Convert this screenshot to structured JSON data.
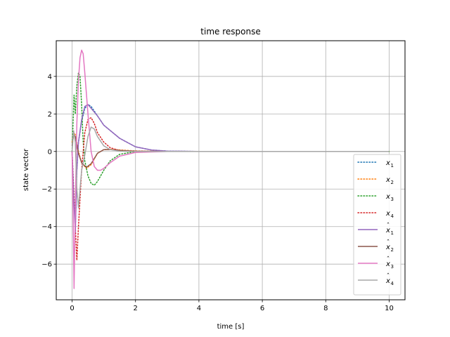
{
  "chart_data": {
    "type": "line",
    "title": "time response",
    "xlabel": "time [s]",
    "ylabel": "state vector",
    "xlim": [
      -0.5,
      10.5
    ],
    "ylim": [
      -7.9,
      5.9
    ],
    "xticks": [
      0,
      2,
      4,
      6,
      8,
      10
    ],
    "xtick_labels": [
      "0",
      "2",
      "4",
      "6",
      "8",
      "10"
    ],
    "yticks": [
      -6,
      -4,
      -2,
      0,
      2,
      4
    ],
    "ytick_labels": [
      "−6",
      "−4",
      "−2",
      "0",
      "2",
      "4"
    ],
    "grid": true,
    "legend_position": "bottom-right",
    "series": [
      {
        "name": "x1",
        "base": "x",
        "sub": "1",
        "hat": false,
        "style": "dotted",
        "color": "#1f77b4",
        "x": [
          0,
          0.05,
          0.1,
          0.15,
          0.2,
          0.3,
          0.4,
          0.5,
          0.6,
          0.8,
          1.0,
          1.5,
          2,
          2.5,
          3,
          4,
          6,
          10
        ],
        "y": [
          0,
          -2.0,
          -4.2,
          -1.0,
          0.5,
          1.6,
          2.3,
          2.5,
          2.4,
          1.9,
          1.4,
          0.7,
          0.25,
          0.08,
          0.02,
          0,
          0,
          0
        ]
      },
      {
        "name": "x2",
        "base": "x",
        "sub": "2",
        "hat": false,
        "style": "dotted",
        "color": "#ff7f0e",
        "x": [
          0,
          0.05,
          0.1,
          0.2,
          0.3,
          0.45,
          0.6,
          0.8,
          1.0,
          1.2,
          1.5,
          2.0,
          3.0,
          10
        ],
        "y": [
          0.5,
          1.0,
          0.9,
          0.0,
          -0.6,
          -0.9,
          -0.7,
          -0.1,
          0.1,
          0.12,
          0.08,
          0.03,
          0,
          0
        ]
      },
      {
        "name": "x3",
        "base": "x",
        "sub": "3",
        "hat": false,
        "style": "dotted",
        "color": "#2ca02c",
        "x": [
          0,
          0.03,
          0.06,
          0.1,
          0.15,
          0.2,
          0.25,
          0.3,
          0.35,
          0.4,
          0.5,
          0.6,
          0.7,
          0.8,
          1.0,
          1.2,
          1.5,
          2.0,
          3.0,
          10
        ],
        "y": [
          0,
          1.5,
          3.0,
          2.0,
          3.5,
          4.2,
          4.0,
          2.5,
          0.5,
          -0.5,
          -1.3,
          -1.7,
          -1.8,
          -1.6,
          -1.0,
          -0.5,
          -0.15,
          0,
          0,
          0
        ]
      },
      {
        "name": "x4",
        "base": "x",
        "sub": "4",
        "hat": false,
        "style": "dotted",
        "color": "#d62728",
        "x": [
          0,
          0.05,
          0.1,
          0.15,
          0.2,
          0.3,
          0.4,
          0.5,
          0.6,
          0.7,
          0.8,
          1.0,
          1.2,
          1.5,
          2.0,
          3.0,
          10
        ],
        "y": [
          0,
          -2.0,
          -4.0,
          -5.8,
          -4.0,
          -1.0,
          1.0,
          1.7,
          1.8,
          1.5,
          1.0,
          0.5,
          0.2,
          0.05,
          0,
          0,
          0
        ]
      },
      {
        "name": "x1 hat",
        "base": "x",
        "sub": "1",
        "hat": true,
        "style": "solid",
        "color": "#9467bd",
        "x": [
          0,
          0.05,
          0.1,
          0.15,
          0.2,
          0.3,
          0.4,
          0.5,
          0.6,
          0.8,
          1.0,
          1.5,
          2,
          2.5,
          3,
          4,
          6,
          10
        ],
        "y": [
          0,
          -2.5,
          -4.3,
          -1.0,
          0.5,
          1.7,
          2.4,
          2.5,
          2.3,
          1.9,
          1.4,
          0.7,
          0.25,
          0.08,
          0.02,
          0,
          0,
          0
        ]
      },
      {
        "name": "x2 hat",
        "base": "x",
        "sub": "2",
        "hat": true,
        "style": "solid",
        "color": "#8c564b",
        "x": [
          0,
          0.05,
          0.1,
          0.2,
          0.3,
          0.45,
          0.6,
          0.8,
          1.0,
          1.2,
          1.5,
          2.0,
          3.0,
          10
        ],
        "y": [
          0.3,
          0.9,
          0.8,
          -0.1,
          -0.6,
          -0.85,
          -0.65,
          -0.1,
          0.1,
          0.1,
          0.06,
          0.02,
          0,
          0
        ]
      },
      {
        "name": "x3 hat",
        "base": "x",
        "sub": "3",
        "hat": true,
        "style": "solid",
        "color": "#e377c2",
        "x": [
          0,
          0.03,
          0.06,
          0.1,
          0.15,
          0.2,
          0.25,
          0.3,
          0.35,
          0.4,
          0.5,
          0.6,
          0.7,
          0.8,
          0.9,
          1.0,
          1.2,
          1.5,
          2.0,
          3.0,
          10
        ],
        "y": [
          0,
          -3.0,
          -7.3,
          -3.0,
          1.5,
          3.8,
          5.0,
          5.4,
          5.2,
          4.2,
          2.0,
          0.0,
          -0.8,
          -1.0,
          -1.0,
          -0.9,
          -0.6,
          -0.25,
          -0.05,
          0,
          0
        ]
      },
      {
        "name": "x4 hat",
        "base": "x",
        "sub": "4",
        "hat": true,
        "style": "solid",
        "color": "#a7a7a7",
        "x": [
          0,
          0.05,
          0.1,
          0.15,
          0.2,
          0.25,
          0.3,
          0.4,
          0.5,
          0.6,
          0.7,
          0.8,
          1.0,
          1.2,
          1.5,
          2.0,
          3.0,
          10
        ],
        "y": [
          0,
          1.1,
          0.5,
          -2.0,
          -3.0,
          -2.0,
          -1.0,
          -0.2,
          0.8,
          1.3,
          1.2,
          0.8,
          0.3,
          0.1,
          0.02,
          0,
          0,
          0
        ]
      }
    ]
  }
}
